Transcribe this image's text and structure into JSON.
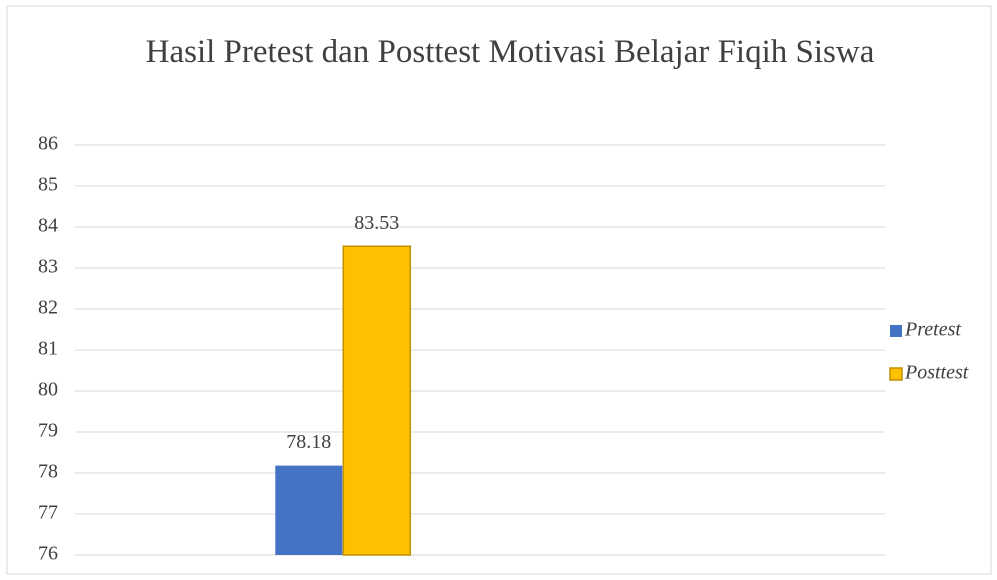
{
  "chart_data": {
    "type": "bar",
    "title": "Hasil Pretest dan Posttest Motivasi Belajar Fiqih Siswa",
    "categories": [
      null
    ],
    "series": [
      {
        "name": "Pretest",
        "color": "#4472c4",
        "values": [
          78.18
        ]
      },
      {
        "name": "Posttest",
        "color": "#ffc000",
        "values": [
          83.53
        ]
      }
    ],
    "ylim": [
      76,
      86
    ],
    "yticks": [
      76,
      77,
      78,
      79,
      80,
      81,
      82,
      83,
      84,
      85,
      86
    ],
    "grid": true,
    "legend": "right"
  }
}
